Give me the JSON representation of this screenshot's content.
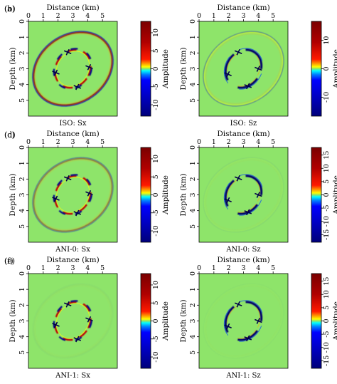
{
  "panels": [
    {
      "letter": "(a)",
      "caption": "ISO: Sx",
      "colorbar_ticks": [
        "10",
        "5",
        "0",
        "-5",
        "-10"
      ],
      "ring": true,
      "ring_strength": 0.9,
      "pattern": "sx",
      "colorbar_label": "Amplitude"
    },
    {
      "letter": "(b)",
      "caption": "ISO: Sz",
      "colorbar_ticks": [
        "10",
        "0",
        "-10"
      ],
      "ring": true,
      "ring_strength": 0.55,
      "pattern": "sz",
      "colorbar_label": "Amplitude"
    },
    {
      "letter": "(c)",
      "caption": "ANI-0: Sx",
      "colorbar_ticks": [
        "10",
        "5",
        "0",
        "-5",
        "-10"
      ],
      "ring": true,
      "ring_strength": 0.6,
      "pattern": "sx",
      "colorbar_label": "Amplitude"
    },
    {
      "letter": "(d)",
      "caption": "ANI-0: Sz",
      "colorbar_ticks": [
        "15",
        "10",
        "5",
        "0",
        "-5",
        "-10",
        "-15"
      ],
      "ring": false,
      "ring_strength": 0.15,
      "pattern": "sz",
      "colorbar_label": "Amplitude"
    },
    {
      "letter": "(e)",
      "caption": "ANI-1: Sx",
      "colorbar_ticks": [
        "10",
        "5",
        "0",
        "-5",
        "-10"
      ],
      "ring": false,
      "ring_strength": 0.1,
      "pattern": "sx",
      "colorbar_label": "Amplitude"
    },
    {
      "letter": "(f)",
      "caption": "ANI-1: Sz",
      "colorbar_ticks": [
        "15",
        "10",
        "5",
        "0",
        "-5",
        "-10",
        "-15"
      ],
      "ring": false,
      "ring_strength": 0.08,
      "pattern": "sz",
      "colorbar_label": "Amplitude"
    }
  ],
  "axes": {
    "xlabel": "Distance (km)",
    "ylabel": "Depth (km)",
    "x_ticks": [
      "0",
      "1",
      "2",
      "3",
      "4",
      "5"
    ],
    "y_ticks": [
      "0",
      "1",
      "2",
      "3",
      "4",
      "5"
    ],
    "xlim": [
      0,
      6
    ],
    "ylim": [
      0,
      6
    ]
  },
  "colors": {
    "background": "#8ee46a",
    "colormap": [
      "#00008b",
      "#0000ff",
      "#00bfff",
      "#7fffd4",
      "#8ee46a",
      "#ffff00",
      "#ff8c00",
      "#ff0000",
      "#8b0000"
    ]
  }
}
